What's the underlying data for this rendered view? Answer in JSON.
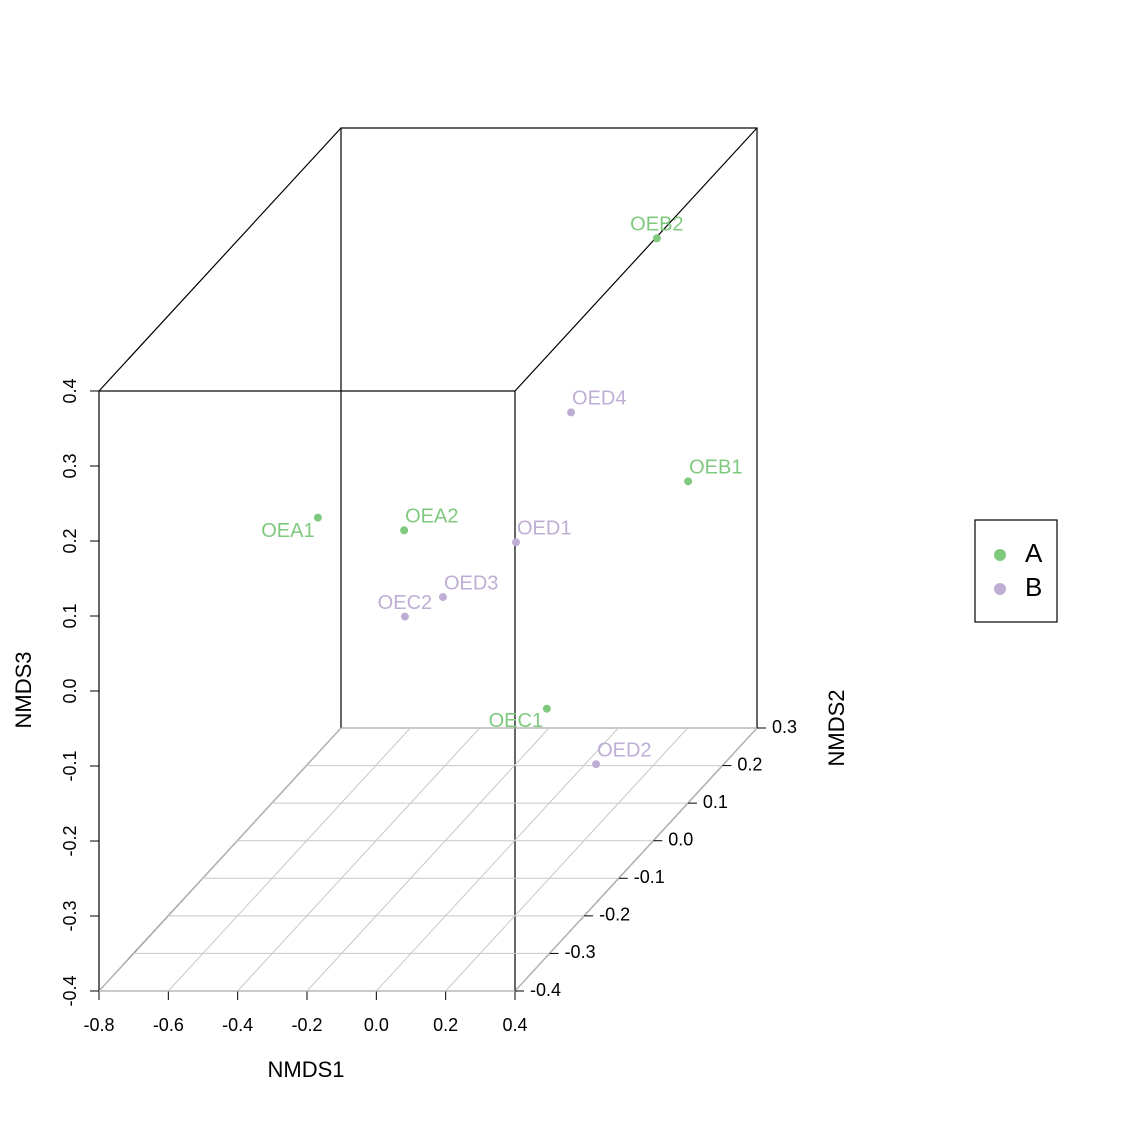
{
  "chart_data": {
    "type": "scatter3d",
    "xlabel": "NMDS1",
    "ylabel": "NMDS2",
    "zlabel": "NMDS3",
    "xlim": [
      -0.8,
      0.4
    ],
    "xticks": [
      -0.8,
      -0.6,
      -0.4,
      -0.2,
      {
        "value": 0,
        "label": "0.0"
      },
      0.2,
      0.4
    ],
    "ylim": [
      -0.4,
      0.3
    ],
    "yticks": [
      -0.4,
      -0.3,
      -0.2,
      -0.1,
      {
        "value": 0,
        "label": "0.0"
      },
      0.1,
      0.2,
      0.3
    ],
    "zlim": [
      -0.4,
      0.4
    ],
    "zticks": [
      -0.4,
      -0.3,
      -0.2,
      -0.1,
      {
        "value": 0,
        "label": "0.0"
      },
      0.1,
      0.2,
      0.3,
      0.4
    ],
    "grid": true,
    "legend": "right",
    "series": [
      {
        "name": "A",
        "color": "#7fc97f",
        "labels": [
          "OEA1",
          "OEA2",
          "OEB1",
          "OEB2",
          "OEC1"
        ],
        "x": [
          -0.368,
          -0.219,
          0.301,
          0.161,
          0.093
        ],
        "y": [
          -0.2,
          -0.1,
          0.2,
          0.25,
          0.0
        ],
        "z": [
          0.131,
          0.064,
          -0.021,
          0.278,
          -0.224
        ]
      },
      {
        "name": "B",
        "color": "#beaed4",
        "labels": [
          "OEC2",
          "OED1",
          "OED2",
          "OED3",
          "OED4"
        ],
        "x": [
          -0.117,
          0.004,
          0.235,
          -0.107,
          0.063
        ],
        "y": [
          -0.2,
          0.0,
          0.0,
          -0.1,
          0.1
        ],
        "z": [
          -0.001,
          -0.002,
          -0.298,
          -0.025,
          0.121
        ]
      }
    ]
  }
}
